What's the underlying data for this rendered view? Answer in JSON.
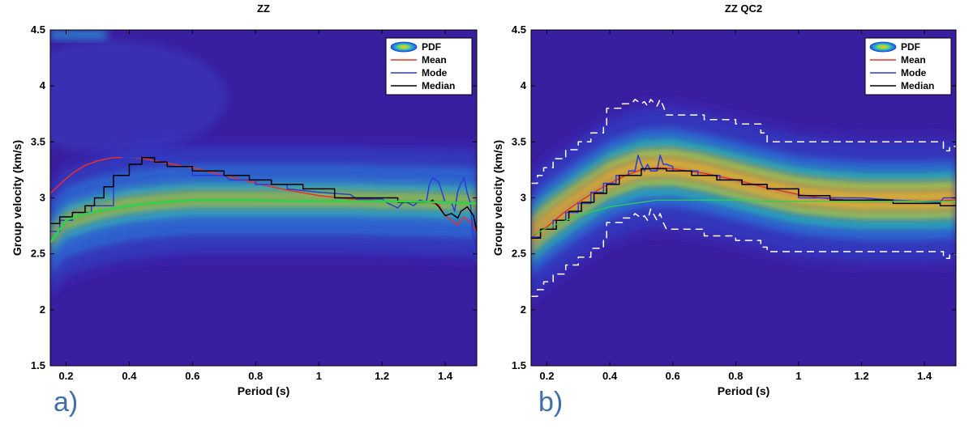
{
  "colors": {
    "background_pdf": "#3a1ea0",
    "mean": "#e8302a",
    "mode": "#2a3cd8",
    "median": "#000000",
    "reference": "#29d64a",
    "bounds": "#ffffff",
    "panel_label": "#3f6fa9"
  },
  "panel_labels": [
    "a)",
    "b)"
  ],
  "chart_data": [
    {
      "type": "line",
      "title": "ZZ",
      "xlabel": "Period (s)",
      "ylabel": "Group velocity (km/s)",
      "xlim": [
        0.15,
        1.5
      ],
      "ylim": [
        1.5,
        4.5
      ],
      "xticks": [
        0.2,
        0.4,
        0.6,
        0.8,
        1,
        1.2,
        1.4
      ],
      "yticks": [
        1.5,
        2,
        2.5,
        3,
        3.5,
        4,
        4.5
      ],
      "xtick_labels": [
        "0.2",
        "0.4",
        "0.6",
        "0.8",
        "1",
        "1.2",
        "1.4"
      ],
      "ytick_labels": [
        "1.5",
        "2",
        "2.5",
        "3",
        "3.5",
        "4",
        "4.5"
      ],
      "legend": {
        "position": "top-right",
        "entries": [
          "PDF",
          "Mean",
          "Mode",
          "Median"
        ]
      },
      "background": "pdf",
      "pdf_ridge": {
        "x": [
          0.15,
          0.2,
          0.3,
          0.4,
          0.5,
          0.6,
          0.7,
          0.8,
          0.9,
          1.0,
          1.1,
          1.2,
          1.3,
          1.4,
          1.5
        ],
        "y": [
          2.62,
          2.78,
          2.87,
          2.93,
          2.96,
          2.98,
          2.98,
          2.98,
          2.98,
          2.98,
          2.98,
          2.97,
          2.97,
          2.96,
          2.95
        ]
      },
      "series": [
        {
          "name": "Mean",
          "x": [
            0.15,
            0.18,
            0.22,
            0.26,
            0.3,
            0.35,
            0.4,
            0.45,
            0.5,
            0.6,
            0.7,
            0.8,
            0.9,
            1.0,
            1.1,
            1.2,
            1.3,
            1.35,
            1.38,
            1.4,
            1.42,
            1.44,
            1.46,
            1.48,
            1.5
          ],
          "y": [
            3.04,
            3.12,
            3.22,
            3.29,
            3.33,
            3.36,
            3.36,
            3.35,
            3.32,
            3.27,
            3.2,
            3.13,
            3.07,
            3.02,
            2.99,
            2.97,
            2.96,
            2.96,
            2.94,
            2.84,
            2.8,
            2.76,
            2.83,
            2.78,
            2.7
          ]
        },
        {
          "name": "Mode",
          "x": [
            0.15,
            0.18,
            0.18,
            0.22,
            0.22,
            0.28,
            0.28,
            0.35,
            0.35,
            0.38,
            0.4,
            0.55,
            0.57,
            0.6,
            0.6,
            0.7,
            0.72,
            0.8,
            0.8,
            0.9,
            0.9,
            1.0,
            1.1,
            1.12,
            1.2,
            1.22,
            1.25,
            1.27,
            1.3,
            1.32,
            1.34,
            1.35,
            1.36,
            1.38,
            1.4,
            1.42,
            1.43,
            1.44,
            1.45,
            1.46,
            1.47,
            1.48,
            1.49,
            1.5
          ],
          "y": [
            2.7,
            2.7,
            2.8,
            2.8,
            2.87,
            2.87,
            2.93,
            2.93,
            3.28,
            3.36,
            3.36,
            3.36,
            3.28,
            3.28,
            3.2,
            3.2,
            3.16,
            3.16,
            3.12,
            3.12,
            3.08,
            3.05,
            3.03,
            2.99,
            2.99,
            2.95,
            2.91,
            2.97,
            2.93,
            2.98,
            2.96,
            3.12,
            3.18,
            3.14,
            2.96,
            2.96,
            2.88,
            3.06,
            3.13,
            3.18,
            3.04,
            2.95,
            2.6,
            2.4
          ]
        },
        {
          "name": "Median",
          "x": [
            0.15,
            0.18,
            0.18,
            0.22,
            0.22,
            0.26,
            0.26,
            0.29,
            0.29,
            0.32,
            0.32,
            0.35,
            0.35,
            0.4,
            0.4,
            0.44,
            0.44,
            0.48,
            0.48,
            0.52,
            0.52,
            0.6,
            0.6,
            0.7,
            0.7,
            0.78,
            0.78,
            0.85,
            0.85,
            0.95,
            0.95,
            1.05,
            1.05,
            1.25,
            1.25,
            1.35,
            1.36,
            1.38,
            1.4,
            1.42,
            1.44,
            1.45,
            1.47,
            1.49,
            1.5
          ],
          "y": [
            2.77,
            2.77,
            2.83,
            2.83,
            2.87,
            2.87,
            2.93,
            2.93,
            3.0,
            3.0,
            3.1,
            3.1,
            3.2,
            3.2,
            3.3,
            3.3,
            3.36,
            3.36,
            3.32,
            3.32,
            3.28,
            3.28,
            3.24,
            3.24,
            3.2,
            3.2,
            3.16,
            3.16,
            3.12,
            3.12,
            3.08,
            3.08,
            3.0,
            3.0,
            2.96,
            2.96,
            2.98,
            2.92,
            2.84,
            2.86,
            2.82,
            2.88,
            2.92,
            2.84,
            2.7
          ]
        },
        {
          "name": "Reference",
          "x": [
            0.15,
            0.2,
            0.25,
            0.3,
            0.4,
            0.5,
            0.6,
            0.7,
            0.8,
            0.9,
            1.0,
            1.2,
            1.4,
            1.5
          ],
          "y": [
            2.6,
            2.8,
            2.85,
            2.88,
            2.93,
            2.96,
            2.98,
            2.98,
            2.98,
            2.97,
            2.97,
            2.97,
            2.96,
            2.95
          ]
        }
      ]
    },
    {
      "type": "line",
      "title": "ZZ QC2",
      "xlabel": "Period (s)",
      "ylabel": "Group velocity (km/s)",
      "xlim": [
        0.15,
        1.5
      ],
      "ylim": [
        1.5,
        4.5
      ],
      "xticks": [
        0.2,
        0.4,
        0.6,
        0.8,
        1,
        1.2,
        1.4
      ],
      "yticks": [
        1.5,
        2,
        2.5,
        3,
        3.5,
        4,
        4.5
      ],
      "xtick_labels": [
        "0.2",
        "0.4",
        "0.6",
        "0.8",
        "1",
        "1.2",
        "1.4"
      ],
      "ytick_labels": [
        "1.5",
        "2",
        "2.5",
        "3",
        "3.5",
        "4",
        "4.5"
      ],
      "legend": {
        "position": "top-right",
        "entries": [
          "PDF",
          "Mean",
          "Mode",
          "Median"
        ]
      },
      "background": "pdf",
      "pdf_ridge": {
        "x": [
          0.15,
          0.2,
          0.3,
          0.4,
          0.5,
          0.6,
          0.7,
          0.8,
          0.9,
          1.0,
          1.1,
          1.2,
          1.3,
          1.4,
          1.5
        ],
        "y": [
          2.65,
          2.78,
          2.98,
          3.16,
          3.26,
          3.27,
          3.22,
          3.15,
          3.08,
          3.02,
          2.99,
          2.97,
          2.97,
          2.97,
          2.98
        ]
      },
      "series": [
        {
          "name": "Mean",
          "x": [
            0.15,
            0.2,
            0.25,
            0.3,
            0.35,
            0.4,
            0.45,
            0.5,
            0.55,
            0.6,
            0.7,
            0.8,
            0.9,
            1.0,
            1.1,
            1.2,
            1.3,
            1.4,
            1.5
          ],
          "y": [
            2.65,
            2.74,
            2.86,
            2.96,
            3.05,
            3.13,
            3.2,
            3.25,
            3.27,
            3.26,
            3.22,
            3.16,
            3.09,
            3.03,
            2.99,
            2.97,
            2.97,
            2.97,
            2.98
          ]
        },
        {
          "name": "Mode",
          "x": [
            0.15,
            0.18,
            0.18,
            0.22,
            0.22,
            0.26,
            0.26,
            0.3,
            0.3,
            0.34,
            0.34,
            0.38,
            0.38,
            0.42,
            0.42,
            0.46,
            0.46,
            0.48,
            0.49,
            0.5,
            0.51,
            0.52,
            0.53,
            0.55,
            0.56,
            0.57,
            0.58,
            0.6,
            0.6,
            0.68,
            0.68,
            0.75,
            0.75,
            0.82,
            0.82,
            0.9,
            0.9,
            1.0,
            1.0,
            1.2,
            1.3,
            1.45,
            1.46,
            1.5
          ],
          "y": [
            2.65,
            2.65,
            2.72,
            2.72,
            2.8,
            2.8,
            2.87,
            2.87,
            2.95,
            2.95,
            3.05,
            3.05,
            3.13,
            3.13,
            3.2,
            3.2,
            3.24,
            3.24,
            3.38,
            3.3,
            3.24,
            3.3,
            3.24,
            3.24,
            3.38,
            3.3,
            3.3,
            3.28,
            3.24,
            3.24,
            3.2,
            3.2,
            3.16,
            3.16,
            3.12,
            3.12,
            3.08,
            3.08,
            3.0,
            3.0,
            2.98,
            2.96,
            3.0,
            3.0
          ]
        },
        {
          "name": "Median",
          "x": [
            0.15,
            0.18,
            0.18,
            0.23,
            0.23,
            0.27,
            0.27,
            0.31,
            0.31,
            0.35,
            0.35,
            0.39,
            0.39,
            0.43,
            0.43,
            0.5,
            0.5,
            0.58,
            0.58,
            0.66,
            0.66,
            0.74,
            0.74,
            0.82,
            0.82,
            0.9,
            0.9,
            1.0,
            1.0,
            1.1,
            1.1,
            1.3,
            1.3,
            1.45,
            1.45,
            1.5
          ],
          "y": [
            2.64,
            2.64,
            2.72,
            2.72,
            2.8,
            2.8,
            2.88,
            2.88,
            2.96,
            2.96,
            3.04,
            3.04,
            3.12,
            3.12,
            3.2,
            3.2,
            3.26,
            3.26,
            3.24,
            3.24,
            3.2,
            3.2,
            3.16,
            3.16,
            3.12,
            3.12,
            3.08,
            3.08,
            3.02,
            3.02,
            2.98,
            2.98,
            2.95,
            2.95,
            2.93,
            2.93
          ]
        },
        {
          "name": "Reference",
          "x": [
            0.15,
            0.2,
            0.3,
            0.4,
            0.5,
            0.55,
            0.6,
            0.7,
            0.8,
            0.9,
            1.0,
            1.2,
            1.4,
            1.5
          ],
          "y": [
            2.66,
            2.73,
            2.84,
            2.92,
            2.96,
            2.98,
            2.98,
            2.98,
            2.98,
            2.97,
            2.97,
            2.97,
            2.97,
            2.97
          ]
        },
        {
          "name": "Upper bound",
          "x": [
            0.15,
            0.17,
            0.17,
            0.19,
            0.19,
            0.22,
            0.22,
            0.26,
            0.26,
            0.3,
            0.3,
            0.34,
            0.34,
            0.38,
            0.38,
            0.39,
            0.39,
            0.4,
            0.4,
            0.44,
            0.44,
            0.47,
            0.48,
            0.5,
            0.51,
            0.52,
            0.53,
            0.55,
            0.56,
            0.57,
            0.58,
            0.6,
            0.6,
            0.7,
            0.7,
            0.8,
            0.8,
            0.88,
            0.88,
            0.9,
            0.9,
            1.0,
            1.0,
            1.46,
            1.46,
            1.48,
            1.48,
            1.5
          ],
          "y": [
            3.13,
            3.13,
            3.2,
            3.2,
            3.27,
            3.27,
            3.35,
            3.35,
            3.43,
            3.43,
            3.5,
            3.5,
            3.58,
            3.58,
            3.65,
            3.65,
            3.8,
            3.8,
            3.8,
            3.8,
            3.84,
            3.84,
            3.88,
            3.84,
            3.86,
            3.82,
            3.88,
            3.82,
            3.88,
            3.82,
            3.74,
            3.74,
            3.74,
            3.74,
            3.7,
            3.7,
            3.66,
            3.66,
            3.58,
            3.58,
            3.5,
            3.5,
            3.5,
            3.5,
            3.42,
            3.42,
            3.46,
            3.46
          ]
        },
        {
          "name": "Lower bound",
          "x": [
            0.15,
            0.17,
            0.17,
            0.19,
            0.19,
            0.22,
            0.22,
            0.26,
            0.26,
            0.3,
            0.3,
            0.34,
            0.34,
            0.38,
            0.38,
            0.39,
            0.39,
            0.4,
            0.4,
            0.44,
            0.44,
            0.47,
            0.48,
            0.5,
            0.51,
            0.52,
            0.53,
            0.55,
            0.56,
            0.57,
            0.58,
            0.6,
            0.6,
            0.7,
            0.7,
            0.8,
            0.8,
            0.88,
            0.88,
            0.9,
            0.9,
            1.0,
            1.0,
            1.46,
            1.46,
            1.48,
            1.48,
            1.5
          ],
          "y": [
            2.12,
            2.12,
            2.18,
            2.18,
            2.25,
            2.25,
            2.32,
            2.32,
            2.4,
            2.4,
            2.47,
            2.47,
            2.55,
            2.55,
            2.62,
            2.62,
            2.78,
            2.78,
            2.78,
            2.78,
            2.82,
            2.82,
            2.86,
            2.82,
            2.84,
            2.8,
            2.9,
            2.8,
            2.86,
            2.78,
            2.72,
            2.72,
            2.72,
            2.72,
            2.66,
            2.66,
            2.62,
            2.62,
            2.56,
            2.56,
            2.52,
            2.52,
            2.52,
            2.52,
            2.46,
            2.46,
            2.5,
            2.5
          ]
        }
      ]
    }
  ]
}
